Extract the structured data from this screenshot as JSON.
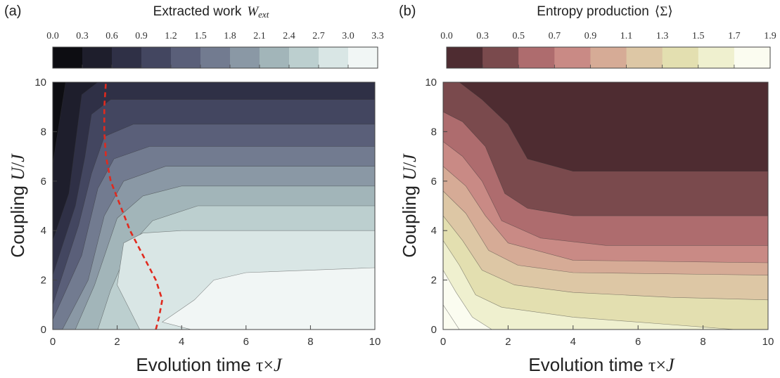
{
  "chart_data": [
    {
      "type": "heatmap",
      "panel_label": "(a)",
      "title_prefix": "Extracted work",
      "title_symbol": "W",
      "title_subscript": "ext",
      "xlabel": "Evolution time τ×J",
      "ylabel": "Coupling U/J",
      "xlim": [
        0,
        10
      ],
      "ylim": [
        0,
        10
      ],
      "xticks": [
        "0",
        "2",
        "4",
        "6",
        "8",
        "10"
      ],
      "yticks": [
        "0",
        "2",
        "4",
        "6",
        "8",
        "10"
      ],
      "colorbar_ticks": [
        "0.0",
        "0.3",
        "0.6",
        "0.9",
        "1.2",
        "1.5",
        "1.8",
        "2.1",
        "2.4",
        "2.7",
        "3.0",
        "3.3"
      ],
      "level_colors": [
        "#0d0d12",
        "#1e1e2c",
        "#2f3046",
        "#434660",
        "#5a5f79",
        "#727b90",
        "#8a98a5",
        "#a2b5b9",
        "#bccfcf",
        "#d9e6e5",
        "#f1f6f5"
      ],
      "contour_boundaries": [
        {
          "level": "0.3",
          "points": [
            [
              0.0,
              6.7
            ],
            [
              0.4,
              10.0
            ]
          ]
        },
        {
          "level": "0.6",
          "points": [
            [
              0.0,
              3.6
            ],
            [
              0.5,
              5.5
            ],
            [
              0.9,
              9.5
            ],
            [
              1.4,
              10.0
            ]
          ]
        },
        {
          "level": "0.9",
          "points": [
            [
              0.0,
              2.2
            ],
            [
              0.7,
              5.0
            ],
            [
              1.0,
              7.0
            ],
            [
              1.2,
              8.7
            ],
            [
              1.8,
              9.3
            ],
            [
              10.0,
              9.3
            ]
          ]
        },
        {
          "level": "1.2",
          "points": [
            [
              0.0,
              1.0
            ],
            [
              0.8,
              4.2
            ],
            [
              1.2,
              6.3
            ],
            [
              1.6,
              7.8
            ],
            [
              2.5,
              8.3
            ],
            [
              10.0,
              8.3
            ]
          ]
        },
        {
          "level": "1.5",
          "points": [
            [
              0.0,
              0.4
            ],
            [
              0.9,
              3.0
            ],
            [
              1.4,
              5.7
            ],
            [
              1.9,
              6.9
            ],
            [
              3.0,
              7.4
            ],
            [
              10.0,
              7.4
            ]
          ]
        },
        {
          "level": "1.8",
          "points": [
            [
              0.3,
              0.0
            ],
            [
              1.1,
              2.0
            ],
            [
              1.6,
              4.6
            ],
            [
              2.2,
              6.0
            ],
            [
              3.5,
              6.6
            ],
            [
              10.0,
              6.6
            ]
          ]
        },
        {
          "level": "2.1",
          "points": [
            [
              0.7,
              0.0
            ],
            [
              1.3,
              1.8
            ],
            [
              2.0,
              4.5
            ],
            [
              2.8,
              5.4
            ],
            [
              4.0,
              5.8
            ],
            [
              10.0,
              5.8
            ]
          ]
        },
        {
          "level": "2.4",
          "points": [
            [
              1.4,
              0.0
            ],
            [
              1.8,
              1.6
            ],
            [
              2.4,
              3.4
            ],
            [
              3.1,
              4.4
            ],
            [
              4.5,
              5.0
            ],
            [
              10.0,
              5.0
            ]
          ]
        },
        {
          "level": "2.7",
          "points": [
            [
              2.7,
              0.0
            ],
            [
              2.0,
              1.8
            ],
            [
              2.2,
              3.5
            ],
            [
              2.8,
              3.9
            ],
            [
              4.0,
              4.0
            ],
            [
              10.0,
              4.0
            ]
          ]
        },
        {
          "level": "3.0",
          "points": [
            [
              4.3,
              0.0
            ],
            [
              3.4,
              0.3
            ],
            [
              4.4,
              1.2
            ],
            [
              5.0,
              2.0
            ],
            [
              6.0,
              2.3
            ],
            [
              10.0,
              2.5
            ]
          ]
        }
      ],
      "overlay_curve": {
        "color": "#e02a1e",
        "style": "dashed",
        "points": [
          [
            3.2,
            0.0
          ],
          [
            3.3,
            0.5
          ],
          [
            3.4,
            1.2
          ],
          [
            3.2,
            2.0
          ],
          [
            2.8,
            3.0
          ],
          [
            2.4,
            4.0
          ],
          [
            2.1,
            5.0
          ],
          [
            1.8,
            6.0
          ],
          [
            1.65,
            7.0
          ],
          [
            1.6,
            8.0
          ],
          [
            1.6,
            9.0
          ],
          [
            1.65,
            10.0
          ]
        ]
      }
    },
    {
      "type": "heatmap",
      "panel_label": "(b)",
      "title_prefix": "Entropy production",
      "title_symbol": "⟨Σ⟩",
      "xlabel": "Evolution time τ×J",
      "ylabel": "Coupling U/J",
      "xlim": [
        0,
        10
      ],
      "ylim": [
        0,
        10
      ],
      "xticks": [
        "0",
        "2",
        "4",
        "6",
        "8",
        "10"
      ],
      "yticks": [
        "0",
        "2",
        "4",
        "6",
        "8",
        "10"
      ],
      "colorbar_ticks": [
        "0.0",
        "0.3",
        "0.5",
        "0.7",
        "0.9",
        "1.1",
        "1.3",
        "1.5",
        "1.7",
        "1.9"
      ],
      "level_colors": [
        "#4e2c31",
        "#7a4a4d",
        "#ae6c6e",
        "#c98a85",
        "#d6ab96",
        "#ddc7a5",
        "#e3dfb0",
        "#eff0cf",
        "#fbfcf0"
      ],
      "contour_boundaries": [
        {
          "level": "0.3",
          "points": [
            [
              0.0,
              10.0
            ],
            [
              0.5,
              10.0
            ],
            [
              1.2,
              9.3
            ],
            [
              2.0,
              8.3
            ],
            [
              2.6,
              6.9
            ],
            [
              4.0,
              6.4
            ],
            [
              10.0,
              6.4
            ]
          ]
        },
        {
          "level": "0.5",
          "points": [
            [
              0.0,
              8.8
            ],
            [
              0.6,
              8.4
            ],
            [
              1.3,
              7.4
            ],
            [
              1.9,
              5.5
            ],
            [
              2.6,
              4.9
            ],
            [
              4.0,
              4.6
            ],
            [
              10.0,
              4.6
            ]
          ]
        },
        {
          "level": "0.7",
          "points": [
            [
              0.0,
              7.6
            ],
            [
              0.6,
              7.0
            ],
            [
              1.2,
              6.0
            ],
            [
              1.8,
              4.4
            ],
            [
              3.0,
              3.7
            ],
            [
              5.0,
              3.4
            ],
            [
              10.0,
              3.4
            ]
          ]
        },
        {
          "level": "0.9",
          "points": [
            [
              0.0,
              6.6
            ],
            [
              0.7,
              5.8
            ],
            [
              1.3,
              4.6
            ],
            [
              2.0,
              3.5
            ],
            [
              4.0,
              2.8
            ],
            [
              10.0,
              2.7
            ]
          ]
        },
        {
          "level": "1.1",
          "points": [
            [
              0.0,
              5.6
            ],
            [
              0.7,
              4.7
            ],
            [
              1.4,
              3.2
            ],
            [
              2.3,
              2.6
            ],
            [
              4.0,
              2.3
            ],
            [
              10.0,
              2.2
            ]
          ]
        },
        {
          "level": "1.3",
          "points": [
            [
              0.0,
              4.6
            ],
            [
              0.6,
              3.6
            ],
            [
              1.2,
              2.4
            ],
            [
              2.2,
              1.8
            ],
            [
              4.0,
              1.5
            ],
            [
              7.0,
              1.3
            ],
            [
              10.0,
              1.2
            ]
          ]
        },
        {
          "level": "1.5",
          "points": [
            [
              0.0,
              3.6
            ],
            [
              0.5,
              2.6
            ],
            [
              1.0,
              1.4
            ],
            [
              1.8,
              0.9
            ],
            [
              4.0,
              0.5
            ],
            [
              7.0,
              0.2
            ],
            [
              9.0,
              0.0
            ]
          ]
        },
        {
          "level": "1.7",
          "points": [
            [
              0.0,
              2.4
            ],
            [
              0.4,
              1.5
            ],
            [
              0.9,
              0.5
            ],
            [
              1.5,
              0.0
            ]
          ]
        },
        {
          "level": "1.9",
          "points": [
            [
              0.0,
              1.0
            ],
            [
              0.3,
              0.4
            ],
            [
              0.5,
              0.0
            ]
          ]
        }
      ]
    }
  ]
}
